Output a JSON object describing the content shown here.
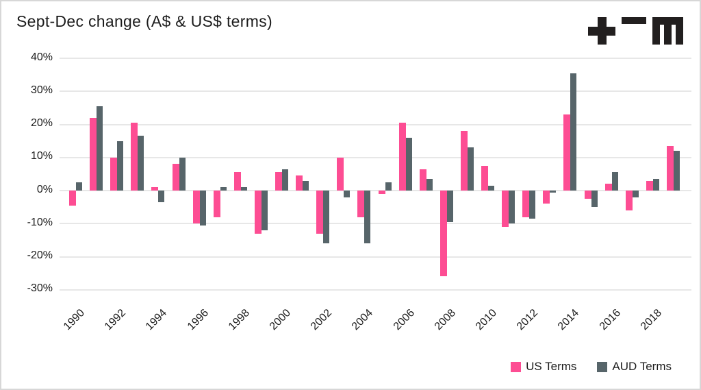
{
  "chart_data": {
    "type": "bar",
    "title": "Sept-Dec change (A$ & US$ terms)",
    "categories": [
      1990,
      1991,
      1992,
      1993,
      1994,
      1995,
      1996,
      1997,
      1998,
      1999,
      2000,
      2001,
      2002,
      2003,
      2004,
      2005,
      2006,
      2007,
      2008,
      2009,
      2010,
      2011,
      2012,
      2013,
      2014,
      2015,
      2016,
      2017,
      2018,
      2019
    ],
    "series": [
      {
        "name": "US Terms",
        "color": "#fd4d93",
        "values": [
          -4.5,
          22,
          10,
          20.5,
          1,
          8,
          -10,
          -8,
          5.5,
          -13,
          5.5,
          4.5,
          -13,
          10,
          -8,
          -1,
          20.5,
          6.5,
          -26,
          18,
          7.5,
          -11,
          -8,
          -4,
          23,
          -2.5,
          2,
          -6,
          3,
          13.5
        ]
      },
      {
        "name": "AUD Terms",
        "color": "#57656a",
        "values": [
          2.5,
          25.5,
          15,
          16.5,
          -3.5,
          10,
          -10.5,
          1,
          1,
          -12,
          6.5,
          3,
          -16,
          -2,
          -16,
          2.5,
          16,
          3.5,
          -9.5,
          13,
          1.5,
          -10,
          -8.5,
          -0.7,
          35.5,
          -5,
          5.5,
          -2,
          3.5,
          12
        ]
      }
    ],
    "y_ticks": [
      40,
      30,
      20,
      10,
      0,
      -10,
      -20,
      -30
    ],
    "y_tick_labels": [
      "40%",
      "30%",
      "20%",
      "10%",
      "0%",
      "-10%",
      "-20%",
      "-30%"
    ],
    "x_tick_labels": [
      "1990",
      "1992",
      "1994",
      "1996",
      "1998",
      "2000",
      "2002",
      "2004",
      "2006",
      "2008",
      "2010",
      "2012",
      "2014",
      "2016",
      "2018"
    ],
    "x_tick_step": 2,
    "ylim": [
      -30,
      40
    ],
    "grid": true,
    "legend_position": "bottom-right"
  },
  "logo": {
    "name": "tem-logo",
    "glyphs": [
      "plus-icon",
      "equals-icon",
      "m-icon"
    ]
  },
  "colors": {
    "us_terms": "#fd4d93",
    "aud_terms": "#57656a",
    "gridline": "#e7e7e7",
    "text": "#1b1b1b",
    "logo": "#221f1f",
    "border": "#d7d7d7"
  }
}
